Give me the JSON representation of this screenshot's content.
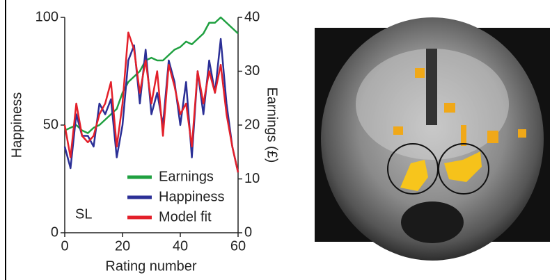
{
  "chart_data": {
    "type": "line",
    "x": [
      0,
      2,
      4,
      6,
      8,
      10,
      12,
      14,
      16,
      18,
      20,
      22,
      24,
      26,
      28,
      30,
      32,
      34,
      36,
      38,
      40,
      42,
      44,
      46,
      48,
      50,
      52,
      54,
      56,
      58,
      60
    ],
    "series": [
      {
        "name": "Earnings",
        "color": "#1fa040",
        "axis": "y2",
        "values": [
          19,
          19.5,
          20,
          19,
          18.5,
          19.5,
          20,
          21,
          22,
          23,
          26,
          28,
          29,
          30,
          32,
          32.5,
          32,
          32,
          33,
          34,
          34.5,
          35.5,
          35,
          36,
          37,
          39,
          39,
          40,
          39,
          38,
          37
        ]
      },
      {
        "name": "Happiness",
        "color": "#2b2f96",
        "values": [
          40,
          30,
          55,
          45,
          45,
          40,
          60,
          55,
          62,
          35,
          50,
          80,
          87,
          60,
          85,
          55,
          65,
          50,
          80,
          70,
          50,
          70,
          35,
          75,
          55,
          80,
          65,
          90,
          60,
          40,
          28
        ]
      },
      {
        "name": "Model fit",
        "color": "#e3202a",
        "values": [
          50,
          35,
          60,
          45,
          42,
          45,
          55,
          60,
          70,
          40,
          60,
          93,
          85,
          65,
          80,
          60,
          75,
          45,
          78,
          68,
          55,
          60,
          40,
          75,
          60,
          75,
          65,
          78,
          55,
          40,
          28
        ]
      }
    ],
    "xlim": [
      0,
      60
    ],
    "xticks": [
      0,
      20,
      40,
      60
    ],
    "ylim": [
      0,
      100
    ],
    "yticks": [
      0,
      50,
      100
    ],
    "y2lim": [
      0,
      40
    ],
    "y2ticks": [
      0,
      10,
      20,
      30,
      40
    ],
    "xlabel": "Rating number",
    "ylabel": "Happiness",
    "y2label": "Earnings (£)",
    "annotation": "SL"
  }
}
